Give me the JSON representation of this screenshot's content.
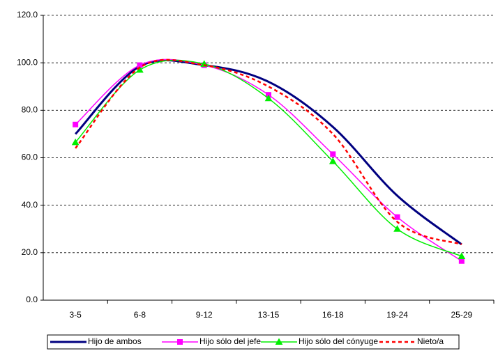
{
  "chart_data": {
    "type": "line",
    "categories": [
      "3-5",
      "6-8",
      "9-12",
      "13-15",
      "16-18",
      "19-24",
      "25-29"
    ],
    "series": [
      {
        "name": "Hijo de ambos",
        "color": "#000080",
        "marker": "none",
        "dash": false,
        "values": [
          70,
          98.5,
          99,
          92,
          73,
          44,
          23.5
        ]
      },
      {
        "name": "Hijo sólo del jefe",
        "color": "#ff00ff",
        "marker": "square",
        "dash": false,
        "values": [
          74,
          99,
          99,
          86.5,
          61.5,
          35,
          16.5
        ]
      },
      {
        "name": "Hijo sólo del cónyuge",
        "color": "#00ee00",
        "marker": "triangle",
        "dash": false,
        "values": [
          66.5,
          97,
          99.5,
          85,
          58.5,
          30,
          18.5
        ]
      },
      {
        "name": "Nieto/a",
        "color": "#ff0000",
        "marker": "none",
        "dash": true,
        "values": [
          64,
          98,
          99,
          90,
          70,
          33,
          23.5
        ]
      }
    ],
    "ylim": [
      0,
      120
    ],
    "yticks": [
      {
        "value": 0,
        "label": "0.0"
      },
      {
        "value": 20,
        "label": "20.0"
      },
      {
        "value": 40,
        "label": "40.0"
      },
      {
        "value": 60,
        "label": "60.0"
      },
      {
        "value": 80,
        "label": "80.0"
      },
      {
        "value": 100,
        "label": "100.0"
      },
      {
        "value": 120,
        "label": "120.0"
      }
    ],
    "grid": true,
    "legend": "bottom"
  }
}
